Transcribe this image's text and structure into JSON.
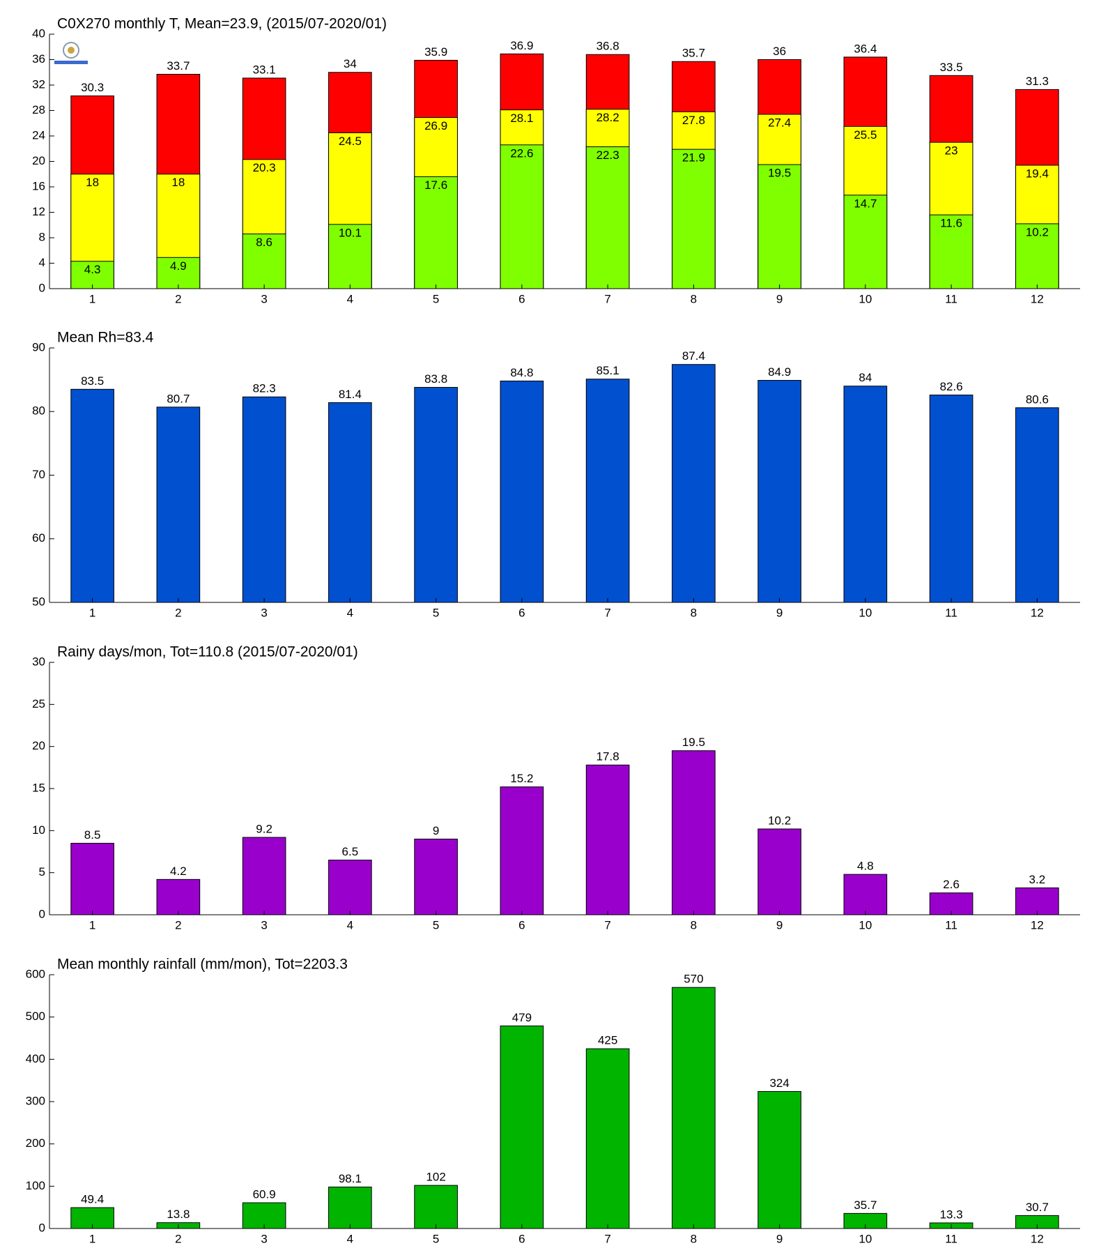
{
  "chart_data": [
    {
      "type": "bar",
      "title": "C0X270 monthly T, Mean=23.9, (2015/07-2020/01)",
      "categories": [
        "1",
        "2",
        "3",
        "4",
        "5",
        "6",
        "7",
        "8",
        "9",
        "10",
        "11",
        "12"
      ],
      "series": [
        {
          "color": "#ff0000",
          "values": [
            30.3,
            33.7,
            33.1,
            34,
            35.9,
            36.9,
            36.8,
            35.7,
            36,
            36.4,
            33.5,
            31.3
          ]
        },
        {
          "color": "#ffff00",
          "values": [
            18,
            18,
            20.3,
            24.5,
            26.9,
            28.1,
            28.2,
            27.8,
            27.4,
            25.5,
            23,
            19.4
          ]
        },
        {
          "color": "#80ff00",
          "values": [
            4.3,
            4.9,
            8.6,
            10.1,
            17.6,
            22.6,
            22.3,
            21.9,
            19.5,
            14.7,
            11.6,
            10.2
          ]
        }
      ],
      "ylim": [
        0,
        40
      ],
      "yticks": [
        0,
        4,
        8,
        12,
        16,
        20,
        24,
        28,
        32,
        36,
        40
      ]
    },
    {
      "type": "bar",
      "title": "Mean Rh=83.4",
      "categories": [
        "1",
        "2",
        "3",
        "4",
        "5",
        "6",
        "7",
        "8",
        "9",
        "10",
        "11",
        "12"
      ],
      "series": [
        {
          "color": "#0050d0",
          "values": [
            83.5,
            80.7,
            82.3,
            81.4,
            83.8,
            84.8,
            85.1,
            87.4,
            84.9,
            84,
            82.6,
            80.6
          ]
        }
      ],
      "ylim": [
        50,
        90
      ],
      "yticks": [
        50,
        60,
        70,
        80,
        90
      ]
    },
    {
      "type": "bar",
      "title": "Rainy days/mon, Tot=110.8 (2015/07-2020/01)",
      "categories": [
        "1",
        "2",
        "3",
        "4",
        "5",
        "6",
        "7",
        "8",
        "9",
        "10",
        "11",
        "12"
      ],
      "series": [
        {
          "color": "#9900cc",
          "values": [
            8.5,
            4.2,
            9.2,
            6.5,
            9,
            15.2,
            17.8,
            19.5,
            10.2,
            4.8,
            2.6,
            3.2
          ]
        }
      ],
      "ylim": [
        0,
        30
      ],
      "yticks": [
        0,
        5,
        10,
        15,
        20,
        25,
        30
      ]
    },
    {
      "type": "bar",
      "title": "Mean monthly rainfall (mm/mon), Tot=2203.3",
      "categories": [
        "1",
        "2",
        "3",
        "4",
        "5",
        "6",
        "7",
        "8",
        "9",
        "10",
        "11",
        "12"
      ],
      "series": [
        {
          "color": "#00b400",
          "values": [
            49.4,
            13.8,
            60.9,
            98.1,
            102,
            479,
            425,
            570,
            324,
            35.7,
            13.3,
            30.7
          ]
        }
      ],
      "ylim": [
        0,
        600
      ],
      "yticks": [
        0,
        100,
        200,
        300,
        400,
        500,
        600
      ]
    }
  ]
}
